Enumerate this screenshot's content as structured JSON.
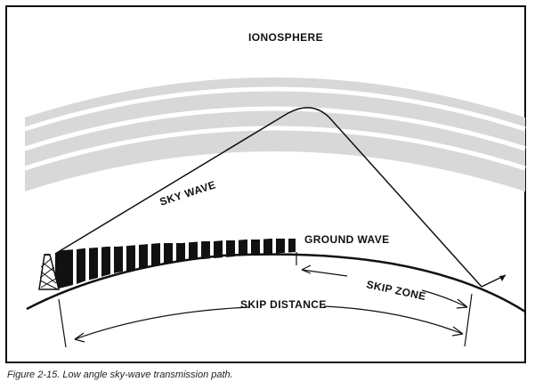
{
  "figure": {
    "labels": {
      "ionosphere": "IONOSPHERE",
      "sky_wave": "SKY WAVE",
      "ground_wave": "GROUND WAVE",
      "skip_zone": "SKIP ZONE",
      "skip_distance": "SKIP DISTANCE"
    },
    "caption": "Figure 2-15. Low angle sky-wave transmission path.",
    "colors": {
      "ionosphere_band": "#d8d8d8",
      "ink": "#111111",
      "background": "#ffffff"
    }
  }
}
